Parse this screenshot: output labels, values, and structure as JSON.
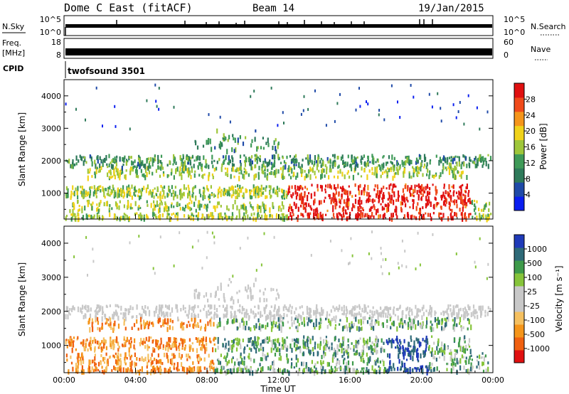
{
  "header": {
    "title": "Dome C East (fitACF)",
    "beam": "Beam 14",
    "date": "19/Jan/2015"
  },
  "top_panels": {
    "nsky_label": "N.Sky",
    "nsky_ticks": [
      "10^5",
      "10^0"
    ],
    "nsearch_label": "N.Search",
    "nsearch_ticks": [
      "10^5",
      "10^0"
    ],
    "freq_label": "Freq.",
    "freq_unit": "[MHz]",
    "freq_ticks": [
      "18",
      "8"
    ],
    "nave_label": "Nave",
    "nave_ticks": [
      "60",
      "0"
    ],
    "cpid_label": "CPID",
    "cpid_value": "twofsound 3501"
  },
  "colors": {
    "power_scale": [
      "#0a1ef0",
      "#1f4aa8",
      "#2e7a5a",
      "#3f9a58",
      "#9ec63a",
      "#f0d21a",
      "#f5951a",
      "#f04a1a",
      "#e01010"
    ],
    "velocity_scale": [
      "#e01010",
      "#f06010",
      "#f5951a",
      "#f5c060",
      "#c8c8c8",
      "#c8c8c8",
      "#86c43a",
      "#3e9a4a",
      "#2e6a78",
      "#1f3ab8"
    ]
  },
  "chart_data": [
    {
      "type": "heatmap",
      "name": "power",
      "xlabel": "",
      "ylabel": "Slant Range [km]",
      "y_ticks": [
        1000,
        2000,
        3000,
        4000
      ],
      "ylim": [
        200,
        4500
      ],
      "xlim": [
        "00:00",
        "24:00"
      ],
      "colorbar": {
        "label": "Power [dB]",
        "ticks": [
          4,
          8,
          12,
          16,
          20,
          24,
          28
        ],
        "range": [
          0,
          32
        ]
      }
    },
    {
      "type": "heatmap",
      "name": "velocity",
      "xlabel": "Time UT",
      "ylabel": "Slant Range [km]",
      "x_ticks": [
        "00:00",
        "04:00",
        "08:00",
        "12:00",
        "16:00",
        "20:00",
        "00:00"
      ],
      "y_ticks": [
        1000,
        2000,
        3000,
        4000
      ],
      "ylim": [
        200,
        4500
      ],
      "xlim": [
        "00:00",
        "24:00"
      ],
      "colorbar": {
        "label": "Velocity [m s⁻¹]",
        "ticks": [
          1000,
          500,
          100,
          25,
          -25,
          -100,
          -500,
          -1000
        ]
      }
    }
  ]
}
